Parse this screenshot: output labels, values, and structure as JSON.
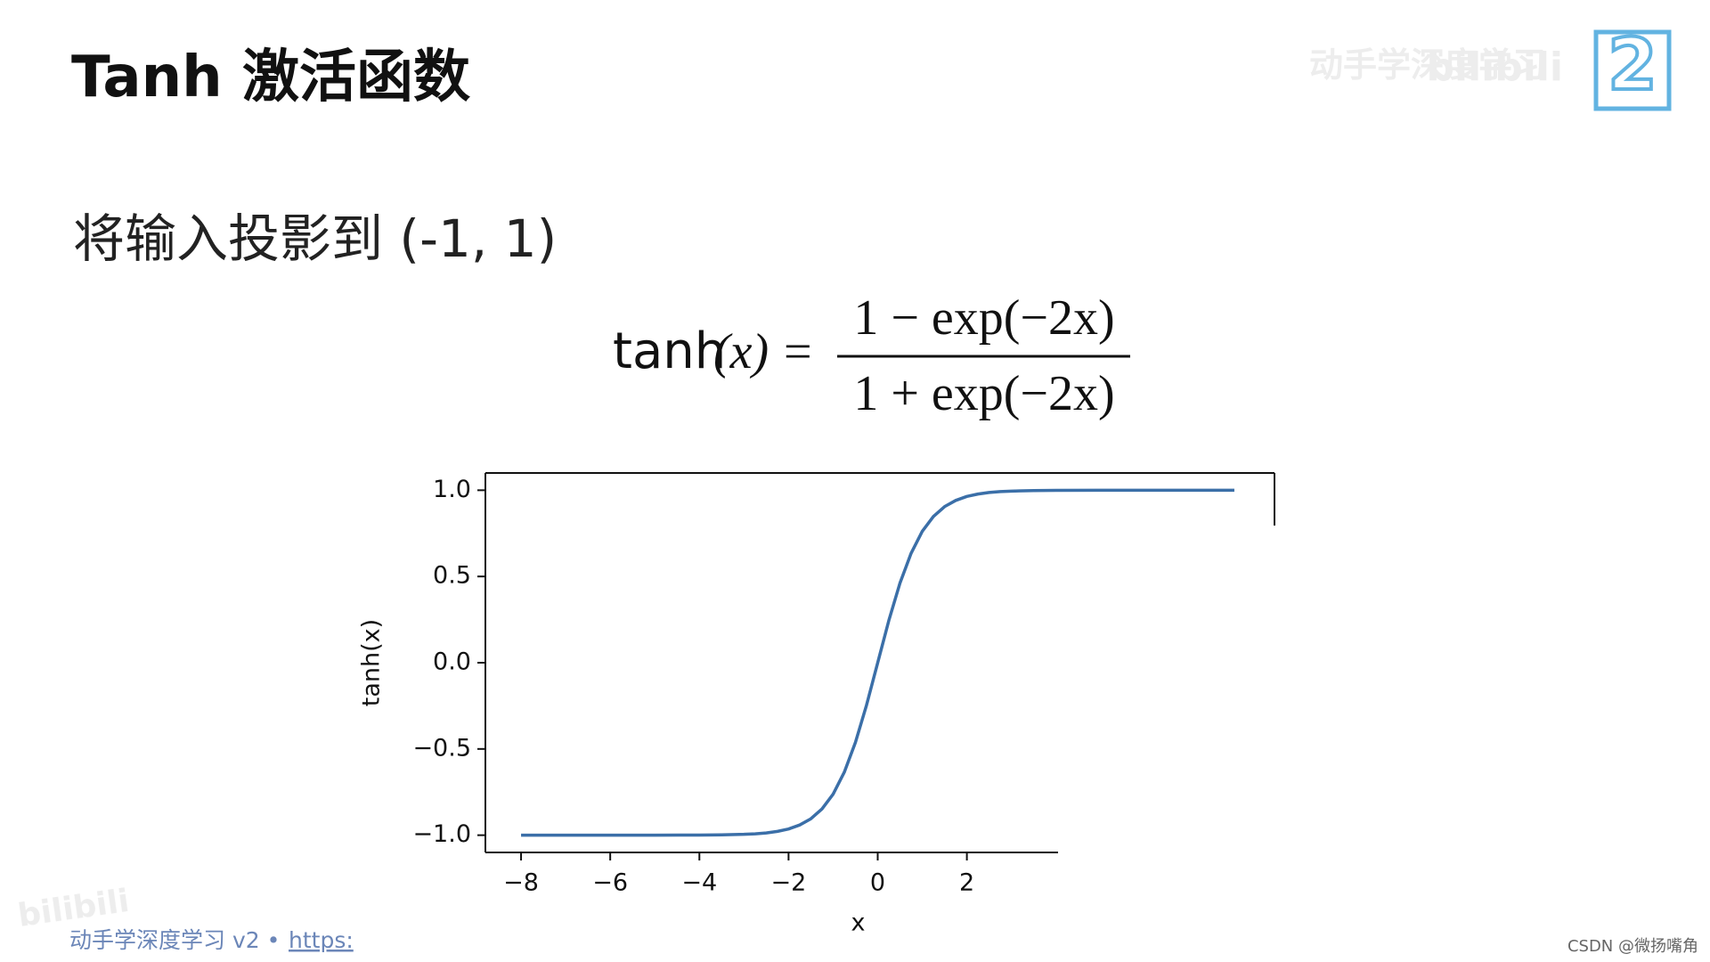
{
  "title": "Tanh 激活函数",
  "subtitle": "将输入投影到 (-1, 1)",
  "formula": {
    "function": "tanh",
    "argument": "(x)",
    "equals": "=",
    "numerator": "1 − exp(−2x)",
    "denominator": "1 + exp(−2x)"
  },
  "watermark": {
    "course": "动手学深度学习",
    "site": "bilibili",
    "corner_site": "bilibili",
    "digit": "2"
  },
  "footer": {
    "text": "动手学深度学习 v2 •",
    "link": "https:"
  },
  "credit": "CSDN @微扬嘴角",
  "chart_data": {
    "type": "line",
    "xlabel": "x",
    "ylabel": "tanh(x)",
    "x": [
      -8,
      -7,
      -6,
      -5,
      -4,
      -3.5,
      -3,
      -2.75,
      -2.5,
      -2.25,
      -2,
      -1.75,
      -1.5,
      -1.25,
      -1,
      -0.75,
      -0.5,
      -0.25,
      0,
      0.25,
      0.5,
      0.75,
      1,
      1.25,
      1.5,
      1.75,
      2,
      2.25,
      2.5,
      2.75,
      3,
      3.5,
      4,
      5,
      6,
      7,
      8
    ],
    "values": [
      -1,
      -1,
      -1,
      -1,
      -0.999,
      -0.998,
      -0.995,
      -0.992,
      -0.987,
      -0.978,
      -0.964,
      -0.941,
      -0.905,
      -0.848,
      -0.762,
      -0.635,
      -0.462,
      -0.245,
      0,
      0.245,
      0.462,
      0.635,
      0.762,
      0.848,
      0.905,
      0.941,
      0.964,
      0.978,
      0.987,
      0.992,
      0.995,
      0.998,
      0.999,
      1,
      1,
      1,
      1
    ],
    "color": "#3b6fa8",
    "xlim": [
      -8.8,
      8.8
    ],
    "ylim": [
      -1.1,
      1.1
    ],
    "xticks": [
      {
        "value": -8,
        "label": "−8"
      },
      {
        "value": -6,
        "label": "−6"
      },
      {
        "value": -4,
        "label": "−4"
      },
      {
        "value": -2,
        "label": "−2"
      },
      0,
      2
    ],
    "yticks": [
      {
        "value": 1,
        "label": "1.0"
      },
      {
        "value": 0.5,
        "label": "0.5"
      },
      {
        "value": 0,
        "label": "0.0"
      },
      {
        "value": -0.5,
        "label": "−0.5"
      },
      {
        "value": -1,
        "label": "−1.0"
      }
    ],
    "grid": false
  }
}
